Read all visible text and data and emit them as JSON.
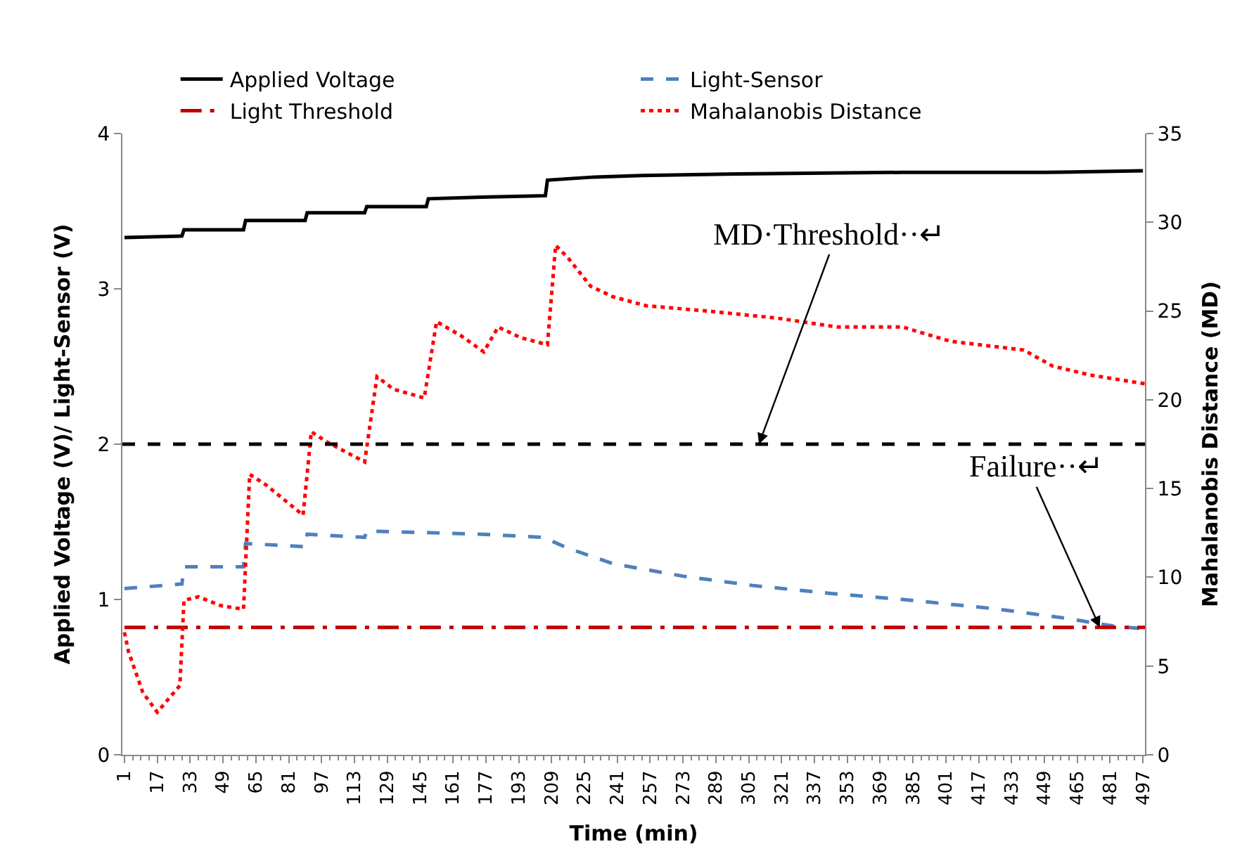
{
  "chart_data": {
    "type": "line",
    "xlabel": "Time (min)",
    "ylabel": "Applied Voltage (V)/ Light-Sensor (V)",
    "y2label": "Mahalanobis Distance (MD)",
    "xlim": [
      0,
      498
    ],
    "xticks": [
      1,
      17,
      33,
      49,
      65,
      81,
      97,
      113,
      129,
      145,
      161,
      177,
      193,
      209,
      225,
      241,
      257,
      273,
      289,
      305,
      321,
      337,
      353,
      369,
      385,
      401,
      417,
      433,
      449,
      465,
      481,
      497
    ],
    "ylim": [
      0,
      4
    ],
    "yticks": [
      0,
      1,
      2,
      3,
      4
    ],
    "y2lim": [
      0,
      35
    ],
    "y2ticks": [
      0,
      5,
      10,
      15,
      20,
      25,
      30,
      35
    ],
    "legend": "top",
    "marker": "none",
    "series": [
      {
        "name": "Applied Voltage",
        "color": "#000000",
        "line_style": "solid",
        "x": [
          1,
          29,
          30,
          59,
          60,
          89,
          90,
          118,
          119,
          148,
          149,
          175,
          206,
          207,
          230,
          253,
          300,
          380,
          450,
          497
        ],
        "values": [
          3.33,
          3.34,
          3.38,
          3.38,
          3.44,
          3.44,
          3.49,
          3.49,
          3.53,
          3.53,
          3.58,
          3.59,
          3.6,
          3.7,
          3.72,
          3.73,
          3.74,
          3.75,
          3.75,
          3.76
        ]
      },
      {
        "name": "Light-Sensor",
        "color": "#4f81bd",
        "line_style": "dashed",
        "x": [
          1,
          29,
          30,
          59,
          60,
          89,
          90,
          118,
          119,
          150,
          175,
          205,
          217,
          239,
          273,
          307,
          344,
          380,
          425,
          459,
          482,
          498
        ],
        "values": [
          1.07,
          1.1,
          1.21,
          1.21,
          1.36,
          1.34,
          1.42,
          1.4,
          1.44,
          1.43,
          1.42,
          1.4,
          1.33,
          1.23,
          1.15,
          1.09,
          1.04,
          1.0,
          0.94,
          0.88,
          0.83,
          0.81
        ]
      },
      {
        "name": "Light Threshold",
        "color": "#c00000",
        "line_style": "dashdot",
        "x": [
          1,
          498
        ],
        "values": [
          0.82,
          0.82
        ]
      },
      {
        "name": "Mahalanobis Distance",
        "color": "#ff0000",
        "line_style": "dotted",
        "axis": "y2",
        "x": [
          1,
          3,
          10,
          17,
          28,
          30,
          37,
          48,
          59,
          62,
          70,
          88,
          92,
          100,
          118,
          124,
          132,
          147,
          153,
          165,
          176,
          183,
          194,
          207,
          211,
          217,
          228,
          239,
          255,
          285,
          319,
          348,
          380,
          403,
          439,
          453,
          471,
          498
        ],
        "values": [
          6.9,
          5.8,
          3.5,
          2.4,
          3.9,
          8.7,
          8.9,
          8.4,
          8.2,
          15.8,
          15.2,
          13.5,
          18.2,
          17.6,
          16.5,
          21.3,
          20.6,
          20.1,
          24.4,
          23.6,
          22.7,
          24.1,
          23.5,
          23.1,
          28.7,
          28.0,
          26.4,
          25.8,
          25.3,
          25.0,
          24.6,
          24.1,
          24.1,
          23.3,
          22.8,
          21.9,
          21.4,
          20.9
        ]
      }
    ],
    "ref_lines": [
      {
        "axis": "y",
        "value": 2,
        "color": "#000000",
        "line_style": "dashed"
      }
    ],
    "annotations": [
      {
        "text": "MD·Threshold··↵",
        "x": 310,
        "y": 2
      },
      {
        "text": "Failure··↵",
        "x": 476,
        "y": 0.82
      }
    ]
  }
}
